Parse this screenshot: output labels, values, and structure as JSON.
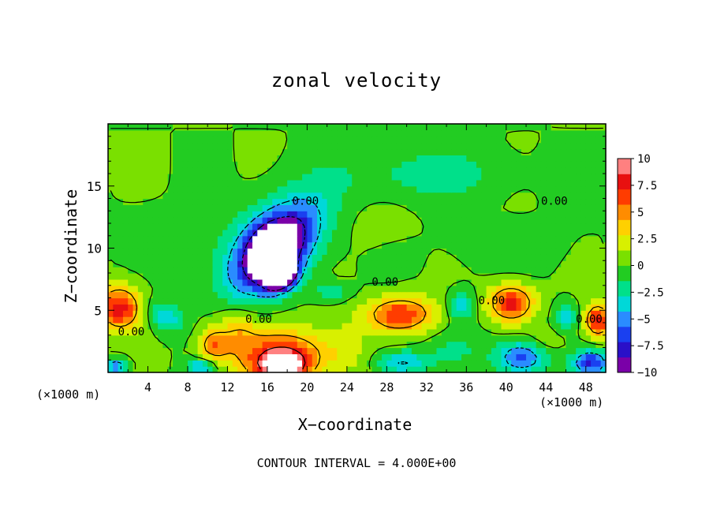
{
  "chart_data": {
    "type": "heatmap",
    "title": "zonal velocity",
    "xlabel": "X−coordinate",
    "ylabel": "Z−coordinate",
    "x_unit_left": "(×1000 m)",
    "x_unit_right": "(×1000 m)",
    "footer": "CONTOUR INTERVAL = 4.000E+00",
    "xlim": [
      0,
      50
    ],
    "ylim": [
      0,
      20
    ],
    "x_ticks": [
      4,
      8,
      12,
      16,
      20,
      24,
      28,
      32,
      36,
      40,
      44,
      48
    ],
    "x_tick_labels": [
      "4",
      "8",
      "12",
      "16",
      "20",
      "24",
      "28",
      "32",
      "36",
      "40",
      "44",
      "48"
    ],
    "y_ticks": [
      5,
      10,
      15
    ],
    "y_tick_labels": [
      "5",
      "10",
      "15"
    ],
    "colorbar": {
      "range": [
        -10,
        10
      ],
      "tick_values": [
        10,
        7.5,
        5,
        2.5,
        0,
        -2.5,
        -5,
        -7.5,
        -10
      ],
      "tick_labels": [
        "10",
        "7.5",
        "5",
        "2.5",
        "0",
        "−2.5",
        "−5",
        "−7.5",
        "−10"
      ],
      "colors": [
        "#7a00a8",
        "#2a10c8",
        "#1a40f0",
        "#2a8cff",
        "#00d8d8",
        "#00e08a",
        "#22cc22",
        "#7ae000",
        "#d8f000",
        "#ffd000",
        "#ff8c00",
        "#ff3c00",
        "#e81010",
        "#ff8080"
      ]
    },
    "contour_labels": [
      {
        "text": "0.00",
        "x": 18.5,
        "y": 13.5
      },
      {
        "text": "0.00",
        "x": 43.5,
        "y": 13.5
      },
      {
        "text": "0.00",
        "x": 26.5,
        "y": 7.0
      },
      {
        "text": "0.00",
        "x": 1.0,
        "y": 3.0
      },
      {
        "text": "0.00",
        "x": 13.8,
        "y": 4.0
      },
      {
        "text": "0.00",
        "x": 37.2,
        "y": 5.5
      },
      {
        "text": "0.00",
        "x": 47.0,
        "y": 4.0
      }
    ],
    "blobs": [
      {
        "x": 16.5,
        "y": 10.5,
        "rx": 6.0,
        "ry": 3.2,
        "v": -5.5,
        "rot": 30
      },
      {
        "x": 16.8,
        "y": 9.8,
        "rx": 4.0,
        "ry": 2.2,
        "v": -9,
        "rot": 35
      },
      {
        "x": 16.5,
        "y": 9.5,
        "rx": 1.6,
        "ry": 1.6,
        "v": -11,
        "rot": 0
      },
      {
        "x": 17.5,
        "y": 7.6,
        "rx": 1.6,
        "ry": 0.9,
        "v": -11,
        "rot": 20
      },
      {
        "x": 17.5,
        "y": 1.3,
        "rx": 5.0,
        "ry": 2.2,
        "v": 7,
        "rot": 0
      },
      {
        "x": 17.5,
        "y": 0.6,
        "rx": 2.0,
        "ry": 1.0,
        "v": 11,
        "rot": 0
      },
      {
        "x": 1.2,
        "y": 5.2,
        "rx": 2.2,
        "ry": 1.8,
        "v": 8,
        "rot": 0
      },
      {
        "x": 5.8,
        "y": 4.5,
        "rx": 1.8,
        "ry": 1.1,
        "v": -4,
        "rot": -20
      },
      {
        "x": 10.5,
        "y": 2.2,
        "rx": 1.5,
        "ry": 1.4,
        "v": 5,
        "rot": 0
      },
      {
        "x": 29.3,
        "y": 4.7,
        "rx": 3.5,
        "ry": 1.5,
        "v": 7,
        "rot": 0
      },
      {
        "x": 35.5,
        "y": 5.4,
        "rx": 1.4,
        "ry": 1.2,
        "v": -4,
        "rot": 0
      },
      {
        "x": 40.5,
        "y": 5.6,
        "rx": 2.3,
        "ry": 1.5,
        "v": 8,
        "rot": 0
      },
      {
        "x": 41.5,
        "y": 1.2,
        "rx": 2.5,
        "ry": 1.3,
        "v": -6.5,
        "rot": 0
      },
      {
        "x": 29.5,
        "y": 0.8,
        "rx": 2.5,
        "ry": 1.0,
        "v": -4.5,
        "rot": 0
      },
      {
        "x": 46.0,
        "y": 4.5,
        "rx": 1.2,
        "ry": 1.2,
        "v": -3.5,
        "rot": 0
      },
      {
        "x": 49.2,
        "y": 4.2,
        "rx": 1.3,
        "ry": 1.3,
        "v": 8,
        "rot": 0
      },
      {
        "x": 48.5,
        "y": 0.8,
        "rx": 1.8,
        "ry": 1.0,
        "v": -7,
        "rot": 0
      },
      {
        "x": 9.5,
        "y": 0.5,
        "rx": 1.5,
        "ry": 0.6,
        "v": -5,
        "rot": 0
      },
      {
        "x": 0.8,
        "y": 0.5,
        "rx": 1.2,
        "ry": 0.6,
        "v": -6,
        "rot": 0
      },
      {
        "x": 22.5,
        "y": 6.5,
        "rx": 2.0,
        "ry": 0.8,
        "v": -2.5,
        "rot": 0
      },
      {
        "x": 35.0,
        "y": 2.0,
        "rx": 3.0,
        "ry": 1.5,
        "v": -1.5,
        "rot": 0
      },
      {
        "x": 13.0,
        "y": 3.5,
        "rx": 2.0,
        "ry": 1.8,
        "v": 3,
        "rot": 0
      },
      {
        "x": 32.0,
        "y": 16.0,
        "rx": 8.0,
        "ry": 2.0,
        "v": -2.2,
        "rot": 0
      },
      {
        "x": 4.0,
        "y": 12.0,
        "rx": 4.0,
        "ry": 2.0,
        "v": -0.6,
        "rot": 0
      },
      {
        "x": 26.0,
        "y": 12.0,
        "rx": 4.0,
        "ry": 2.0,
        "v": 0.6,
        "rot": 0
      },
      {
        "x": 40.0,
        "y": 10.0,
        "rx": 6.0,
        "ry": 2.0,
        "v": -0.8,
        "rot": 0
      },
      {
        "x": 24.0,
        "y": 2.0,
        "rx": 2.0,
        "ry": 2.0,
        "v": 1.5,
        "rot": 0
      },
      {
        "x": 44.0,
        "y": 2.5,
        "rx": 2.0,
        "ry": 1.0,
        "v": 1.5,
        "rot": 0
      }
    ]
  }
}
